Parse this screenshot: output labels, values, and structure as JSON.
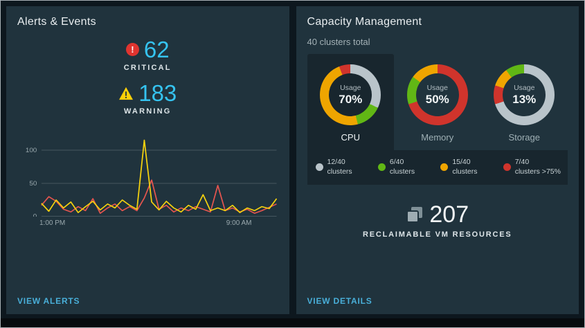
{
  "colors": {
    "accent_link": "#49afd9",
    "number_cyan": "#35c3f0",
    "critical_red": "#e0342f",
    "warning_yellow": "#fdd008",
    "ok_green": "#61b715",
    "usage_orange": "#efa500",
    "neutral_gray": "#b9c4ca"
  },
  "left_panel": {
    "title": "Alerts & Events",
    "critical": {
      "value": "62",
      "label": "CRITICAL"
    },
    "warning": {
      "value": "183",
      "label": "WARNING"
    },
    "link": "VIEW ALERTS"
  },
  "right_panel": {
    "title": "Capacity Management",
    "subtitle": "40 clusters total",
    "usage_word": "Usage",
    "legend": [
      {
        "color": "#b9c4ca",
        "value": "12/40",
        "label": "clusters"
      },
      {
        "color": "#61b715",
        "value": "6/40",
        "label": "clusters"
      },
      {
        "color": "#efa500",
        "value": "15/40",
        "label": "clusters"
      },
      {
        "color": "#d0342c",
        "value": "7/40",
        "label": "clusters >75%"
      }
    ],
    "reclaimable": {
      "value": "207",
      "label": "RECLAIMABLE VM RESOURCES"
    },
    "link": "VIEW DETAILS"
  },
  "chart_data": [
    {
      "type": "line",
      "title": "Alerts & Events trend",
      "x_ticks": [
        "1:00 PM",
        "9:00 AM"
      ],
      "y_ticks": [
        0,
        50,
        100
      ],
      "ylim": [
        0,
        125
      ],
      "grid": true,
      "series": [
        {
          "name": "critical",
          "color": "#e5554f",
          "values": [
            17,
            30,
            23,
            11,
            7,
            15,
            9,
            27,
            5,
            13,
            19,
            9,
            15,
            9,
            28,
            55,
            11,
            17,
            7,
            13,
            9,
            15,
            11,
            7,
            47,
            9,
            13,
            7,
            11,
            5,
            9,
            14,
            19
          ]
        },
        {
          "name": "warning",
          "color": "#f5d20e",
          "values": [
            20,
            8,
            25,
            13,
            22,
            6,
            15,
            23,
            10,
            19,
            13,
            25,
            17,
            11,
            115,
            22,
            10,
            23,
            13,
            7,
            17,
            11,
            33,
            9,
            13,
            9,
            17,
            6,
            13,
            9,
            15,
            12,
            27
          ]
        }
      ]
    },
    {
      "type": "donut",
      "title": "Cluster capacity usage",
      "charts": [
        {
          "label": "CPU",
          "usage": "70%",
          "selected": true,
          "segments": [
            {
              "color": "#b9c4ca",
              "value": 32
            },
            {
              "color": "#61b715",
              "value": 14
            },
            {
              "color": "#efa500",
              "value": 48
            },
            {
              "color": "#d0342c",
              "value": 6
            }
          ]
        },
        {
          "label": "Memory",
          "usage": "50%",
          "selected": false,
          "segments": [
            {
              "color": "#d0342c",
              "value": 70
            },
            {
              "color": "#61b715",
              "value": 15
            },
            {
              "color": "#efa500",
              "value": 15
            }
          ]
        },
        {
          "label": "Storage",
          "usage": "13%",
          "selected": false,
          "segments": [
            {
              "color": "#b9c4ca",
              "value": 70
            },
            {
              "color": "#d0342c",
              "value": 10
            },
            {
              "color": "#efa500",
              "value": 10
            },
            {
              "color": "#61b715",
              "value": 10
            }
          ]
        }
      ]
    }
  ]
}
